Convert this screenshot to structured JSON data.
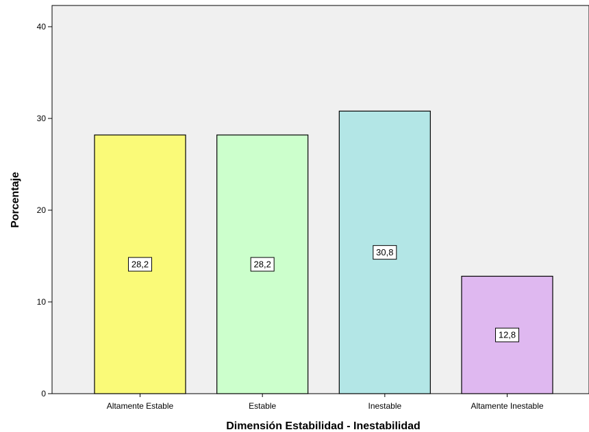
{
  "chart_data": {
    "type": "bar",
    "categories": [
      "Altamente Estable",
      "Estable",
      "Inestable",
      "Altamente Inestable"
    ],
    "values": [
      28.2,
      28.2,
      30.8,
      12.8
    ],
    "value_labels": [
      "28,2",
      "28,2",
      "30,8",
      "12,8"
    ],
    "colors": [
      "#fafa78",
      "#ccffcc",
      "#b3e6e6",
      "#dfb8f0"
    ],
    "plot_background": "#f0f0f0",
    "title": "",
    "xlabel": "Dimensión Estabilidad - Inestabilidad",
    "ylabel": "Porcentaje",
    "ylim": [
      0,
      40
    ],
    "yticks": [
      0,
      10,
      20,
      30,
      40
    ],
    "ytick_labels": [
      "0",
      "10",
      "20",
      "30",
      "40"
    ],
    "grid": false,
    "legend": "none"
  }
}
